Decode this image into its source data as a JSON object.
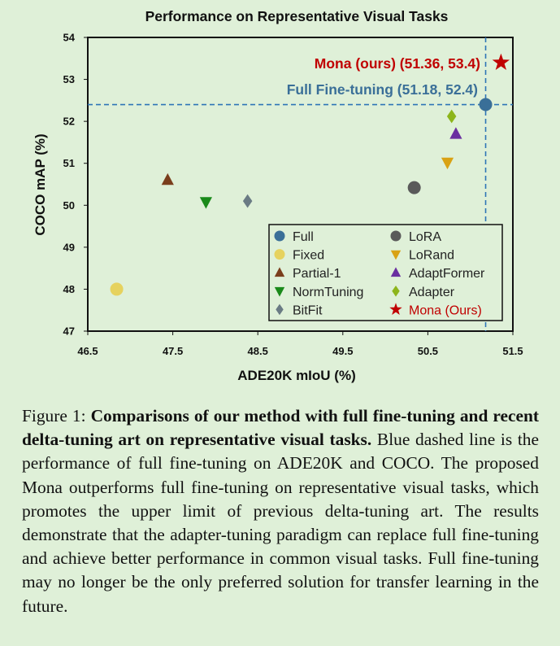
{
  "chart_data": {
    "type": "scatter",
    "title": "Performance on Representative Visual Tasks",
    "xlabel": "ADE20K mIoU (%)",
    "ylabel": "COCO mAP (%)",
    "xlim": [
      46.5,
      51.5
    ],
    "ylim": [
      47,
      54
    ],
    "xticks": [
      "46.5",
      "47.5",
      "48.5",
      "49.5",
      "50.5",
      "51.5"
    ],
    "yticks": [
      "47",
      "48",
      "49",
      "50",
      "51",
      "52",
      "53",
      "54"
    ],
    "grid": false,
    "legend_position": "bottom-right",
    "reference_lines": {
      "x": 51.18,
      "y": 52.4,
      "color": "#2e75b6",
      "style": "dashed"
    },
    "series": [
      {
        "name": "Full",
        "x": 51.18,
        "y": 52.4,
        "marker": "circle",
        "color": "#3a6f98"
      },
      {
        "name": "Fixed",
        "x": 46.84,
        "y": 48.0,
        "marker": "circle",
        "color": "#e6d25e"
      },
      {
        "name": "Partial-1",
        "x": 47.44,
        "y": 50.6,
        "marker": "triangle-up",
        "color": "#7a3e1c"
      },
      {
        "name": "NormTuning",
        "x": 47.89,
        "y": 50.08,
        "marker": "triangle-down",
        "color": "#1a8a1a"
      },
      {
        "name": "BitFit",
        "x": 48.38,
        "y": 50.1,
        "marker": "diamond",
        "color": "#6a7b84"
      },
      {
        "name": "LoRA",
        "x": 50.34,
        "y": 50.42,
        "marker": "circle",
        "color": "#5a5a5a"
      },
      {
        "name": "LoRand",
        "x": 50.73,
        "y": 51.02,
        "marker": "triangle-down",
        "color": "#d9a214"
      },
      {
        "name": "AdaptFormer",
        "x": 50.83,
        "y": 51.7,
        "marker": "triangle-up",
        "color": "#6a2fa0"
      },
      {
        "name": "Adapter",
        "x": 50.78,
        "y": 52.12,
        "marker": "diamond",
        "color": "#8db51b"
      },
      {
        "name": "Mona (Ours)",
        "x": 51.36,
        "y": 53.4,
        "marker": "star",
        "color": "#c00000"
      }
    ],
    "annotations": [
      {
        "text": "Mona (ours) (51.36, 53.4)",
        "color": "#c00000"
      },
      {
        "text": "Full Fine-tuning (51.18, 52.4)",
        "color": "#3a6f98"
      }
    ]
  },
  "caption": {
    "label": "Figure 1:",
    "bold": "Comparisons of our method with full fine-tuning and recent delta-tuning art on representative visual tasks.",
    "text": "Blue dashed line is the performance of full fine-tuning on ADE20K and COCO. The proposed Mona outperforms full fine-tuning on representative visual tasks, which promotes the upper limit of previous delta-tuning art. The results demonstrate that the adapter-tuning paradigm can replace full fine-tuning and achieve better performance in common visual tasks. Full fine-tuning may no longer be the only preferred solution for transfer learning in the future."
  }
}
